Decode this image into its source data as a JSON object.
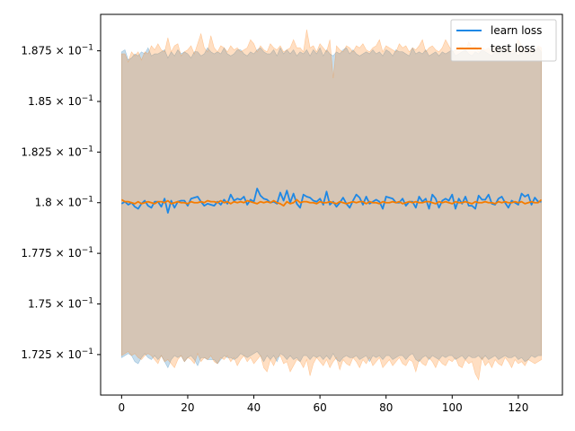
{
  "chart_data": {
    "type": "line",
    "title": "",
    "xlabel": "",
    "ylabel": "",
    "xlim": [
      -6.35,
      133.35
    ],
    "ylim": [
      0.1705,
      0.1893
    ],
    "grid": false,
    "legend_placement": "top-right",
    "x_ticks": [
      {
        "value": 0,
        "label": "0"
      },
      {
        "value": 20,
        "label": "20"
      },
      {
        "value": 40,
        "label": "40"
      },
      {
        "value": 60,
        "label": "60"
      },
      {
        "value": 80,
        "label": "80"
      },
      {
        "value": 100,
        "label": "100"
      },
      {
        "value": 120,
        "label": "120"
      }
    ],
    "y_ticks": [
      {
        "value": 0.1725,
        "mantissa": "1.725"
      },
      {
        "value": 0.175,
        "mantissa": "1.75"
      },
      {
        "value": 0.1775,
        "mantissa": "1.775"
      },
      {
        "value": 0.18,
        "mantissa": "1.8"
      },
      {
        "value": 0.1825,
        "mantissa": "1.825"
      },
      {
        "value": 0.185,
        "mantissa": "1.85"
      },
      {
        "value": 0.1875,
        "mantissa": "1.875"
      }
    ],
    "y_tick_suffix": "× 10",
    "y_tick_exponent": "−1",
    "series": [
      {
        "name": "learn loss",
        "color": "#1f77b4",
        "line_color": "#1e88e5",
        "x_start": 0,
        "mean": [
          0.17995,
          0.18005,
          0.1799,
          0.18,
          0.1798,
          0.1797,
          0.17995,
          0.1801,
          0.17985,
          0.17975,
          0.18005,
          0.18005,
          0.1798,
          0.1802,
          0.1795,
          0.1801,
          0.17975,
          0.18005,
          0.1801,
          0.1801,
          0.17985,
          0.1802,
          0.18025,
          0.1803,
          0.18005,
          0.17985,
          0.17995,
          0.1799,
          0.17985,
          0.18005,
          0.1799,
          0.18015,
          0.17995,
          0.1804,
          0.1801,
          0.1802,
          0.18015,
          0.1803,
          0.1799,
          0.18015,
          0.18005,
          0.1807,
          0.18035,
          0.1802,
          0.18015,
          0.18,
          0.18005,
          0.17995,
          0.1805,
          0.1801,
          0.1806,
          0.18,
          0.18045,
          0.17995,
          0.17975,
          0.1804,
          0.1803,
          0.18025,
          0.1801,
          0.18005,
          0.1802,
          0.1799,
          0.18055,
          0.1799,
          0.18005,
          0.1798,
          0.18,
          0.18025,
          0.17995,
          0.17975,
          0.1801,
          0.1804,
          0.18025,
          0.1799,
          0.1803,
          0.17995,
          0.18005,
          0.18015,
          0.18005,
          0.1797,
          0.1803,
          0.18025,
          0.1802,
          0.18,
          0.18,
          0.1802,
          0.17985,
          0.18005,
          0.18005,
          0.17975,
          0.1803,
          0.18005,
          0.1802,
          0.1797,
          0.1804,
          0.1802,
          0.17975,
          0.1801,
          0.1802,
          0.1801,
          0.1804,
          0.1797,
          0.1802,
          0.17995,
          0.1803,
          0.17985,
          0.17985,
          0.1797,
          0.18035,
          0.18015,
          0.18015,
          0.1804,
          0.17995,
          0.1799,
          0.1802,
          0.1803,
          0.18,
          0.17975,
          0.1801,
          0.18,
          0.1799,
          0.18045,
          0.1803,
          0.1804,
          0.1799,
          0.18025,
          0.18005,
          0.18005
        ],
        "upper": [
          0.18745,
          0.18755,
          0.18705,
          0.18715,
          0.18735,
          0.18725,
          0.18745,
          0.18735,
          0.18765,
          0.18725,
          0.18735,
          0.18735,
          0.18745,
          0.18755,
          0.18715,
          0.18745,
          0.18725,
          0.18755,
          0.18735,
          0.18745,
          0.18735,
          0.18715,
          0.18745,
          0.18745,
          0.18725,
          0.18735,
          0.18765,
          0.18745,
          0.18735,
          0.18745,
          0.18735,
          0.18765,
          0.18735,
          0.18725,
          0.18735,
          0.18755,
          0.18755,
          0.18735,
          0.18725,
          0.18745,
          0.18735,
          0.18755,
          0.18765,
          0.18745,
          0.18735,
          0.18735,
          0.18755,
          0.18725,
          0.18765,
          0.18735,
          0.18755,
          0.18735,
          0.18755,
          0.18725,
          0.18745,
          0.18735,
          0.18755,
          0.18725,
          0.18755,
          0.18735,
          0.18765,
          0.18725,
          0.18755,
          0.18735,
          0.18725,
          0.18745,
          0.18735,
          0.18755,
          0.18765,
          0.18735,
          0.18755,
          0.18735,
          0.18725,
          0.18735,
          0.18745,
          0.18735,
          0.18755,
          0.18735,
          0.18745,
          0.18725,
          0.18755,
          0.18745,
          0.18725,
          0.18755,
          0.18745,
          0.18745,
          0.18735,
          0.18725,
          0.18765,
          0.18735,
          0.18745,
          0.18735,
          0.18755,
          0.18725,
          0.18735,
          0.18745,
          0.18725,
          0.18745,
          0.18735,
          0.18745,
          0.18755,
          0.18725,
          0.18735,
          0.18745,
          0.18755,
          0.18735,
          0.18725,
          0.18745,
          0.18735,
          0.18755,
          0.18745,
          0.18735,
          0.18725,
          0.18745,
          0.18735,
          0.18765,
          0.18735,
          0.18745,
          0.18735,
          0.18745,
          0.18725,
          0.18745,
          0.18735,
          0.18755,
          0.18725,
          0.18745,
          0.18765,
          0.18745
        ],
        "lower": [
          0.17235,
          0.17245,
          0.17255,
          0.17245,
          0.17215,
          0.17205,
          0.17235,
          0.17255,
          0.17235,
          0.17225,
          0.17245,
          0.17225,
          0.17245,
          0.17215,
          0.17185,
          0.17225,
          0.17245,
          0.17235,
          0.17245,
          0.17215,
          0.17235,
          0.17245,
          0.17225,
          0.17195,
          0.17235,
          0.17235,
          0.17225,
          0.17225,
          0.17225,
          0.17205,
          0.17225,
          0.17245,
          0.17235,
          0.17235,
          0.17225,
          0.17235,
          0.17255,
          0.17245,
          0.17235,
          0.17245,
          0.17255,
          0.17265,
          0.17245,
          0.17215,
          0.17245,
          0.17225,
          0.17245,
          0.17215,
          0.17255,
          0.17245,
          0.17225,
          0.17245,
          0.17225,
          0.17235,
          0.17215,
          0.17245,
          0.17245,
          0.17225,
          0.17245,
          0.17235,
          0.17245,
          0.17225,
          0.17245,
          0.17225,
          0.17255,
          0.17225,
          0.17215,
          0.17235,
          0.17245,
          0.17235,
          0.17235,
          0.17245,
          0.17225,
          0.17235,
          0.17245,
          0.17215,
          0.17245,
          0.17235,
          0.17245,
          0.17225,
          0.17245,
          0.17245,
          0.17225,
          0.17235,
          0.17245,
          0.17245,
          0.17225,
          0.17245,
          0.17255,
          0.17225,
          0.17215,
          0.17235,
          0.17245,
          0.17225,
          0.17245,
          0.17235,
          0.17225,
          0.17245,
          0.17235,
          0.17245,
          0.17245,
          0.17225,
          0.17235,
          0.17245,
          0.17225,
          0.17245,
          0.17235,
          0.17235,
          0.17245,
          0.17225,
          0.17245,
          0.17225,
          0.17235,
          0.17245,
          0.17225,
          0.17235,
          0.17245,
          0.17235,
          0.17235,
          0.17245,
          0.17225,
          0.17235,
          0.17215,
          0.17225,
          0.17245,
          0.17235,
          0.17245,
          0.17245
        ]
      },
      {
        "name": "test loss",
        "color": "#ff7f0e",
        "line_color": "#f57c00",
        "x_start": 0,
        "mean": [
          0.18015,
          0.18005,
          0.18005,
          0.18,
          0.17995,
          0.18005,
          0.17995,
          0.18,
          0.18005,
          0.18,
          0.17995,
          0.18005,
          0.18005,
          0.18,
          0.1801,
          0.17995,
          0.18,
          0.18005,
          0.18,
          0.18,
          0.17995,
          0.18005,
          0.18,
          0.18,
          0.18005,
          0.18,
          0.1801,
          0.18005,
          0.18005,
          0.18,
          0.1801,
          0.18,
          0.18005,
          0.17995,
          0.18005,
          0.18,
          0.18005,
          0.18,
          0.1801,
          0.18005,
          0.18,
          0.17995,
          0.18005,
          0.18,
          0.18005,
          0.18,
          0.1801,
          0.18,
          0.17995,
          0.17985,
          0.18005,
          0.17995,
          0.18,
          0.18015,
          0.18,
          0.18005,
          0.18005,
          0.18,
          0.18,
          0.17995,
          0.18005,
          0.18,
          0.18,
          0.18005,
          0.18,
          0.17995,
          0.18005,
          0.18,
          0.17995,
          0.18,
          0.18005,
          0.18,
          0.18005,
          0.18005,
          0.17995,
          0.18005,
          0.18,
          0.18,
          0.17995,
          0.18005,
          0.18,
          0.18,
          0.18005,
          0.18,
          0.18005,
          0.17995,
          0.18,
          0.18005,
          0.18,
          0.18005,
          0.18,
          0.18,
          0.18005,
          0.18005,
          0.18,
          0.17995,
          0.18005,
          0.18,
          0.18005,
          0.18,
          0.17995,
          0.18005,
          0.18,
          0.18,
          0.18005,
          0.18,
          0.17995,
          0.18005,
          0.18,
          0.18,
          0.18005,
          0.18,
          0.18,
          0.17995,
          0.18005,
          0.18,
          0.18005,
          0.18,
          0.18,
          0.18005,
          0.18,
          0.18005,
          0.17995,
          0.18,
          0.18005,
          0.18,
          0.18,
          0.18015
        ],
        "upper": [
          0.18735,
          0.18735,
          0.18695,
          0.18745,
          0.18725,
          0.18745,
          0.18705,
          0.18745,
          0.18735,
          0.18775,
          0.18755,
          0.18785,
          0.18755,
          0.18745,
          0.18815,
          0.18745,
          0.18775,
          0.18785,
          0.18725,
          0.18745,
          0.18755,
          0.18775,
          0.18735,
          0.18785,
          0.18835,
          0.18765,
          0.18745,
          0.18825,
          0.18765,
          0.18745,
          0.18775,
          0.18765,
          0.18745,
          0.18775,
          0.18755,
          0.18765,
          0.18745,
          0.18755,
          0.18765,
          0.18805,
          0.18785,
          0.18745,
          0.18775,
          0.18755,
          0.18745,
          0.18785,
          0.18765,
          0.18755,
          0.18775,
          0.18745,
          0.18755,
          0.18765,
          0.18805,
          0.18765,
          0.18765,
          0.18745,
          0.18855,
          0.18765,
          0.18775,
          0.18745,
          0.18785,
          0.18765,
          0.18745,
          0.18805,
          0.18615,
          0.18775,
          0.18755,
          0.18745,
          0.18775,
          0.18765,
          0.18745,
          0.18775,
          0.18765,
          0.18785,
          0.18755,
          0.18745,
          0.18765,
          0.18775,
          0.18805,
          0.18745,
          0.18775,
          0.18765,
          0.18755,
          0.18745,
          0.18785,
          0.18765,
          0.18775,
          0.18745,
          0.18765,
          0.18755,
          0.18775,
          0.18805,
          0.18745,
          0.18765,
          0.18775,
          0.18755,
          0.18745,
          0.18765,
          0.18805,
          0.18775,
          0.18745,
          0.18755,
          0.18765,
          0.18775,
          0.18745,
          0.18795,
          0.18765,
          0.18775,
          0.18745,
          0.18765,
          0.18755,
          0.18765,
          0.18745,
          0.18775,
          0.18745,
          0.18765,
          0.18775,
          0.18755,
          0.18745,
          0.18765,
          0.18805,
          0.18775,
          0.18745,
          0.18765,
          0.18755,
          0.18745,
          0.18775,
          0.18765
        ],
        "lower": [
          0.17245,
          0.17255,
          0.17265,
          0.17245,
          0.17255,
          0.17235,
          0.17225,
          0.17245,
          0.17255,
          0.17245,
          0.17225,
          0.17205,
          0.17245,
          0.17215,
          0.17225,
          0.17205,
          0.17185,
          0.17225,
          0.17245,
          0.17215,
          0.17235,
          0.17225,
          0.17205,
          0.17255,
          0.17215,
          0.17235,
          0.17225,
          0.17245,
          0.17215,
          0.17205,
          0.17235,
          0.17225,
          0.17245,
          0.17215,
          0.17235,
          0.17195,
          0.17225,
          0.17245,
          0.17215,
          0.17235,
          0.17205,
          0.17225,
          0.17245,
          0.17185,
          0.17165,
          0.17225,
          0.17195,
          0.17235,
          0.17245,
          0.17205,
          0.17215,
          0.17165,
          0.17195,
          0.17225,
          0.17215,
          0.17185,
          0.17225,
          0.17145,
          0.17205,
          0.17235,
          0.17215,
          0.17195,
          0.17225,
          0.17185,
          0.17215,
          0.17235,
          0.17175,
          0.17225,
          0.17205,
          0.17195,
          0.17235,
          0.17215,
          0.17185,
          0.17225,
          0.17205,
          0.17235,
          0.17195,
          0.17215,
          0.17235,
          0.17185,
          0.17205,
          0.17225,
          0.17195,
          0.17215,
          0.17235,
          0.17205,
          0.17195,
          0.17225,
          0.17215,
          0.17165,
          0.17225,
          0.17205,
          0.17195,
          0.17235,
          0.17215,
          0.17185,
          0.17225,
          0.17205,
          0.17195,
          0.17225,
          0.17215,
          0.17235,
          0.17195,
          0.17185,
          0.17225,
          0.17205,
          0.17215,
          0.17155,
          0.17125,
          0.17235,
          0.17195,
          0.17215,
          0.17185,
          0.17225,
          0.17205,
          0.17195,
          0.17235,
          0.17215,
          0.17185,
          0.17225,
          0.17205,
          0.17215,
          0.17195,
          0.17225,
          0.17215,
          0.17205,
          0.17215,
          0.17225
        ]
      }
    ]
  }
}
